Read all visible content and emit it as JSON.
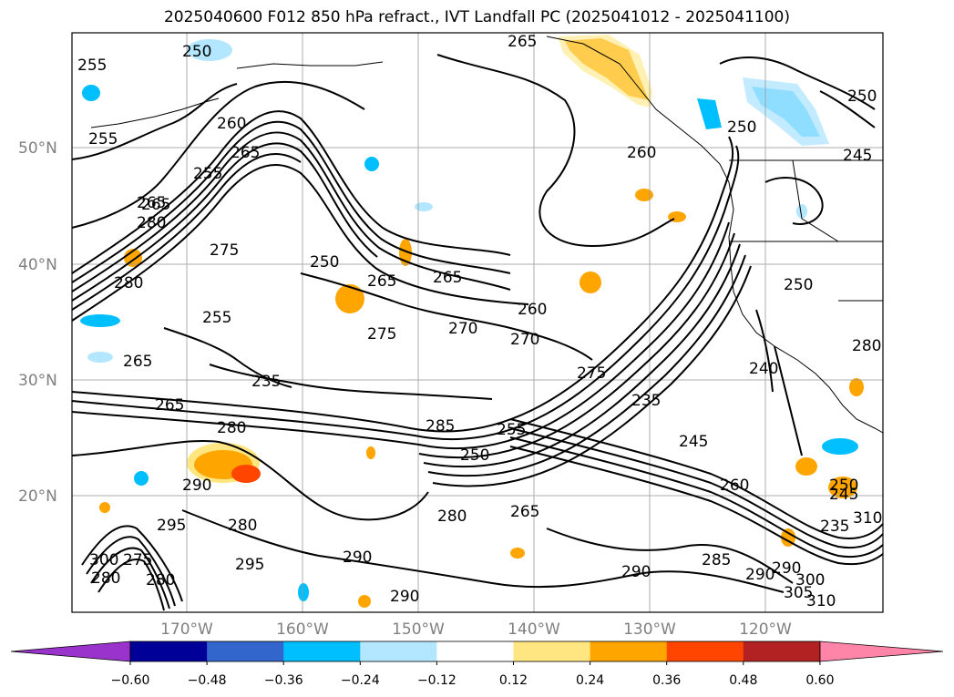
{
  "title": "2025040600 F012 850 hPa refract., IVT Landfall PC (2025041012 - 2025041100)",
  "lat_labels": [
    "50°N",
    "40°N",
    "30°N",
    "20°N"
  ],
  "lon_labels": [
    "170°W",
    "160°W",
    "150°W",
    "140°W",
    "130°W",
    "120°W"
  ],
  "colorbar": {
    "colors": [
      "#9933cc",
      "#000099",
      "#3366cc",
      "#00bfff",
      "#b3e6ff",
      "#ffffff",
      "#ffe680",
      "#ffa500",
      "#ff4500",
      "#b22222",
      "#ff85a8"
    ],
    "tick_labels": [
      "−0.60",
      "−0.48",
      "−0.36",
      "−0.24",
      "−0.12",
      "0.12",
      "0.24",
      "0.36",
      "0.48",
      "0.60"
    ]
  },
  "contour_labels": [
    "250",
    "255",
    "265",
    "250",
    "260",
    "265",
    "255",
    "255",
    "250",
    "245",
    "260",
    "265",
    "280",
    "275",
    "250",
    "265",
    "280",
    "255",
    "265",
    "275",
    "270",
    "270",
    "260",
    "250",
    "235",
    "275",
    "240",
    "280",
    "265",
    "285",
    "255",
    "250",
    "235",
    "245",
    "290",
    "280",
    "280",
    "260",
    "265",
    "250",
    "245",
    "235",
    "310",
    "295",
    "300",
    "275",
    "280",
    "280",
    "295",
    "290",
    "285",
    "290",
    "290",
    "290",
    "300",
    "305",
    "310",
    "265",
    "265",
    "280",
    "290"
  ]
}
